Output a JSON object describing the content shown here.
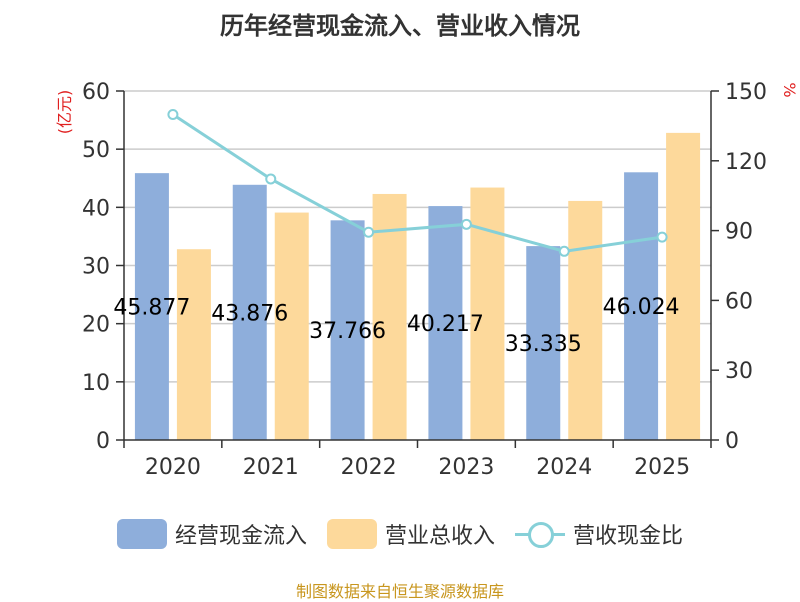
{
  "chart_data": {
    "type": "bar+line",
    "title": "历年经营现金流入、营业收入情况",
    "categories": [
      "2020",
      "2021",
      "2022",
      "2023",
      "2024",
      "2025"
    ],
    "series": [
      {
        "name": "经营现金流入",
        "kind": "bar",
        "axis": "left",
        "color": "#8eaedb",
        "values": [
          45.877,
          43.876,
          37.766,
          40.217,
          33.335,
          46.024
        ],
        "labels": [
          "45.877",
          "43.876",
          "37.766",
          "40.217",
          "33.335",
          "46.024"
        ]
      },
      {
        "name": "营业总收入",
        "kind": "bar",
        "axis": "left",
        "color": "#fdd99b",
        "values": [
          32.8,
          39.1,
          42.3,
          43.4,
          41.1,
          52.8
        ]
      },
      {
        "name": "营收现金比",
        "kind": "line",
        "axis": "right",
        "color": "#86d0d8",
        "values": [
          139.9,
          112.2,
          89.3,
          92.7,
          81.1,
          87.2
        ]
      }
    ],
    "y_left": {
      "label": "(亿元)",
      "range": [
        0,
        60
      ],
      "ticks": [
        "0",
        "10",
        "20",
        "30",
        "40",
        "50",
        "60"
      ]
    },
    "y_right": {
      "label": "%",
      "range": [
        0,
        150
      ],
      "ticks": [
        "0",
        "30",
        "60",
        "90",
        "120",
        "150"
      ]
    },
    "grid": true,
    "legend": "bottom-center"
  },
  "legend_items": [
    "经营现金流入",
    "营业总收入",
    "营收现金比"
  ],
  "source": "制图数据来自恒生聚源数据库",
  "colors": {
    "axis_label": "#e02020",
    "text": "#333333",
    "grid": "#cccccc"
  }
}
